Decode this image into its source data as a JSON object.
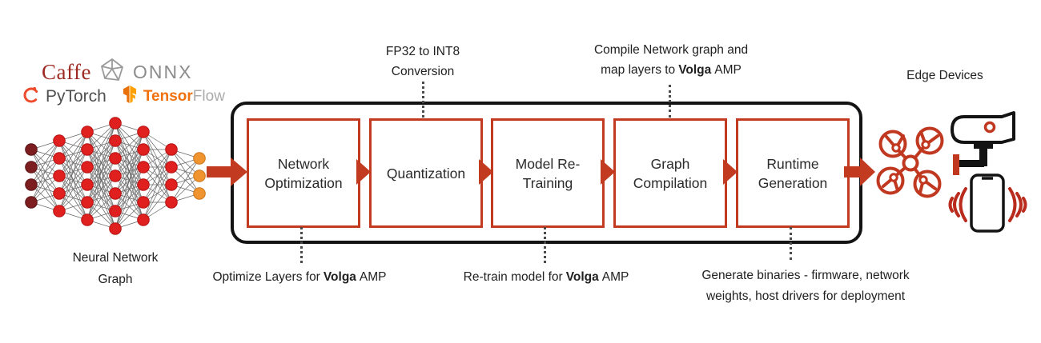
{
  "colors": {
    "accent_red": "#c23b20",
    "frame_black": "#131313",
    "text_dark": "#212121",
    "caffe_red": "#9e2b23",
    "onnx_gray": "#8c8c8c",
    "pytorch_orange": "#ee4c2c",
    "tensorflow_orange": "#f0710e",
    "device_red": "#c0381f"
  },
  "frameworks": {
    "caffe": "Caffe",
    "onnx": "ONNX",
    "pytorch": "PyTorch",
    "tensorflow_bold": "Tensor",
    "tensorflow_light": "Flow"
  },
  "input_label": {
    "line1": "Neural Network",
    "line2": "Graph"
  },
  "output_label": "Edge Devices",
  "pipeline": {
    "stages": [
      {
        "label": "Network Optimization"
      },
      {
        "label": "Quantization"
      },
      {
        "label": "Model Re-Training"
      },
      {
        "label": "Graph Compilation"
      },
      {
        "label": "Runtime Generation"
      }
    ]
  },
  "annotations": {
    "top_quantization": {
      "line1": "FP32 to INT8",
      "line2": "Conversion"
    },
    "top_compilation": {
      "line1": "Compile Network graph and",
      "line2_pre": "map layers to",
      "line2_brand": "Volga",
      "line2_post": "AMP"
    },
    "bottom_optimization": {
      "pre": "Optimize Layers for",
      "brand": "Volga",
      "post": "AMP"
    },
    "bottom_retraining": {
      "pre": "Re-train model for",
      "brand": "Volga",
      "post": "AMP"
    },
    "bottom_runtime": {
      "line1": "Generate binaries - firmware, network",
      "line2": "weights, host drivers for deployment"
    }
  },
  "neural_network": {
    "layers": [
      4,
      5,
      6,
      7,
      6,
      4,
      3
    ],
    "input_color": "#7c1e20",
    "input_stroke": "#5c1416",
    "hidden_color": "#e01f1f",
    "hidden_stroke": "#b51212",
    "output_color": "#f09430",
    "output_stroke": "#cc741a",
    "edge_color": "#666666"
  }
}
